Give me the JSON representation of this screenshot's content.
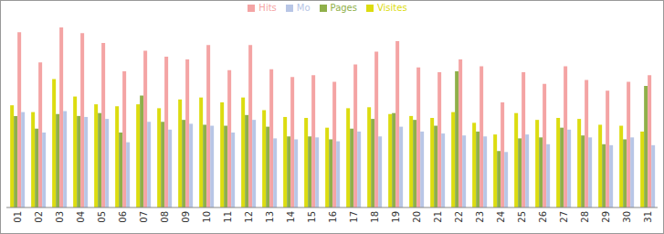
{
  "chart_data": {
    "type": "bar",
    "categories": [
      "01",
      "02",
      "03",
      "04",
      "05",
      "06",
      "07",
      "08",
      "09",
      "10",
      "11",
      "12",
      "13",
      "14",
      "15",
      "16",
      "17",
      "18",
      "19",
      "20",
      "21",
      "22",
      "23",
      "24",
      "25",
      "26",
      "27",
      "28",
      "29",
      "30",
      "31"
    ],
    "series": [
      {
        "name": "Visites",
        "color": "#dcdc10",
        "values": [
          105,
          98,
          132,
          114,
          106,
          104,
          106,
          102,
          111,
          113,
          108,
          113,
          100,
          93,
          92,
          82,
          102,
          103,
          96,
          94,
          92,
          98,
          87,
          75,
          97,
          90,
          92,
          91,
          85,
          84,
          78
        ]
      },
      {
        "name": "Pages",
        "color": "#8fb04a",
        "values": [
          94,
          81,
          96,
          94,
          97,
          77,
          115,
          88,
          90,
          85,
          84,
          95,
          83,
          73,
          73,
          70,
          81,
          91,
          97,
          90,
          84,
          140,
          78,
          58,
          71,
          72,
          82,
          74,
          65,
          70,
          125
        ]
      },
      {
        "name": "Hits",
        "color": "#f4a4a4",
        "values": [
          180,
          149,
          185,
          179,
          169,
          140,
          161,
          155,
          152,
          167,
          141,
          167,
          142,
          134,
          136,
          129,
          147,
          160,
          171,
          144,
          139,
          152,
          145,
          108,
          139,
          127,
          145,
          131,
          120,
          129,
          136
        ]
      },
      {
        "name": "Mo",
        "color": "#b8c6e6",
        "values": [
          98,
          77,
          99,
          93,
          91,
          67,
          88,
          80,
          86,
          84,
          77,
          90,
          71,
          70,
          72,
          68,
          78,
          73,
          83,
          78,
          76,
          74,
          73,
          57,
          75,
          65,
          80,
          72,
          64,
          72,
          64
        ]
      }
    ],
    "ylim": [
      0,
      200
    ],
    "legend": "top",
    "tick_labels": "x"
  }
}
